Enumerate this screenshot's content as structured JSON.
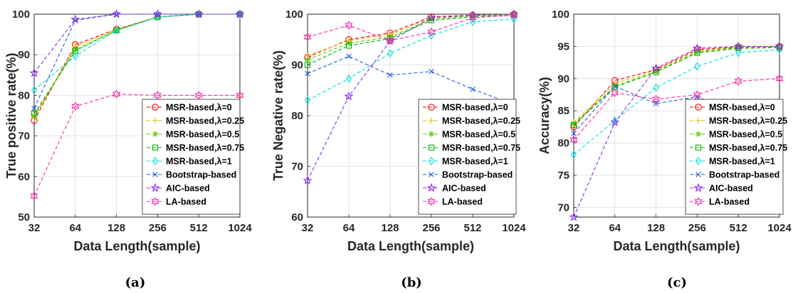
{
  "chart_data": [
    {
      "type": "line",
      "panel_label": "(a)",
      "xlabel": "Data Length(sample)",
      "ylabel": "True positive rate(%)",
      "categories": [
        "32",
        "64",
        "128",
        "256",
        "512",
        "1024"
      ],
      "yticks": [
        "50",
        "60",
        "70",
        "80",
        "90",
        "100"
      ],
      "ylim": [
        50,
        100
      ],
      "grid": true,
      "legend_position": "bottom-right",
      "series": [
        {
          "name": "MSR-based,λ=0",
          "values": [
            73.8,
            92.5,
            96.3,
            99.3,
            100,
            100
          ]
        },
        {
          "name": "MSR-based,λ=0.25",
          "values": [
            74.5,
            92.0,
            96.2,
            99.3,
            100,
            100
          ]
        },
        {
          "name": "MSR-based,λ=0.5",
          "values": [
            75.0,
            91.3,
            96.0,
            99.3,
            100,
            100
          ]
        },
        {
          "name": "MSR-based,λ=0.75",
          "values": [
            75.5,
            91.0,
            96.0,
            99.3,
            100,
            100
          ]
        },
        {
          "name": "MSR-based,λ=1",
          "values": [
            81.3,
            89.7,
            96.0,
            99.3,
            100,
            100
          ]
        },
        {
          "name": "Bootstrap-based",
          "values": [
            76.8,
            98.5,
            100,
            100,
            100,
            100
          ]
        },
        {
          "name": "AIC-based",
          "values": [
            85.5,
            98.7,
            100,
            100,
            100,
            100
          ]
        },
        {
          "name": "LA-based",
          "values": [
            55.2,
            77.3,
            80.3,
            80.0,
            80.0,
            80.0
          ]
        }
      ]
    },
    {
      "type": "line",
      "panel_label": "(b)",
      "xlabel": "Data Length(sample)",
      "ylabel": "True Negative rate(%)",
      "categories": [
        "32",
        "64",
        "128",
        "256",
        "512",
        "1024"
      ],
      "yticks": [
        "60",
        "70",
        "80",
        "90",
        "100"
      ],
      "ylim": [
        60,
        100
      ],
      "grid": true,
      "legend_position": "bottom-right",
      "series": [
        {
          "name": "MSR-based,λ=0",
          "values": [
            91.5,
            95.0,
            96.3,
            99.5,
            99.8,
            100
          ]
        },
        {
          "name": "MSR-based,λ=0.25",
          "values": [
            91.8,
            94.8,
            96.0,
            99.3,
            99.8,
            100
          ]
        },
        {
          "name": "MSR-based,λ=0.5",
          "values": [
            91.0,
            94.3,
            95.5,
            99.0,
            99.7,
            99.9
          ]
        },
        {
          "name": "MSR-based,λ=0.75",
          "values": [
            90.0,
            93.8,
            95.2,
            98.8,
            99.5,
            99.8
          ]
        },
        {
          "name": "MSR-based,λ=1",
          "values": [
            83.0,
            87.3,
            92.3,
            95.8,
            98.5,
            99.0
          ]
        },
        {
          "name": "Bootstrap-based",
          "values": [
            88.3,
            91.7,
            88.0,
            88.7,
            85.2,
            82.2
          ]
        },
        {
          "name": "AIC-based",
          "values": [
            67.2,
            83.8,
            94.7,
            99.3,
            99.8,
            100
          ]
        },
        {
          "name": "LA-based",
          "values": [
            95.5,
            97.8,
            94.8,
            96.5,
            99.3,
            99.8
          ]
        }
      ]
    },
    {
      "type": "line",
      "panel_label": "(c)",
      "xlabel": "Data Length(sample)",
      "ylabel": "Accuracy(%)",
      "categories": [
        "32",
        "64",
        "128",
        "256",
        "512",
        "1024"
      ],
      "yticks": [
        "70",
        "75",
        "80",
        "85",
        "90",
        "95",
        "100"
      ],
      "ylim": [
        68.5,
        100
      ],
      "grid": true,
      "legend_position": "bottom-right",
      "series": [
        {
          "name": "MSR-based,λ=0",
          "values": [
            82.5,
            89.7,
            91.4,
            94.5,
            94.9,
            95.0
          ]
        },
        {
          "name": "MSR-based,λ=0.25",
          "values": [
            83.2,
            89.2,
            91.3,
            94.3,
            94.8,
            94.9
          ]
        },
        {
          "name": "MSR-based,λ=0.5",
          "values": [
            83.0,
            88.8,
            91.1,
            94.1,
            94.8,
            94.9
          ]
        },
        {
          "name": "MSR-based,λ=0.75",
          "values": [
            82.8,
            88.7,
            91.0,
            94.0,
            94.7,
            94.8
          ]
        },
        {
          "name": "MSR-based,λ=1",
          "values": [
            78.2,
            83.5,
            88.6,
            91.9,
            94.0,
            94.5
          ]
        },
        {
          "name": "Bootstrap-based",
          "values": [
            81.5,
            88.8,
            86.1,
            87.2,
            84.6,
            82.4
          ]
        },
        {
          "name": "AIC-based",
          "values": [
            68.5,
            83.2,
            91.6,
            94.7,
            95.0,
            95.0
          ]
        },
        {
          "name": "LA-based",
          "values": [
            80.5,
            87.8,
            86.8,
            87.5,
            89.6,
            90.0
          ]
        }
      ]
    }
  ],
  "series_styles": [
    {
      "color": "#ff0000",
      "marker": "circle"
    },
    {
      "color": "#e6b800",
      "marker": "plus"
    },
    {
      "color": "#55d000",
      "marker": "asterisk"
    },
    {
      "color": "#00b000",
      "marker": "square"
    },
    {
      "color": "#00e0e0",
      "marker": "diamond"
    },
    {
      "color": "#2060dd",
      "marker": "x"
    },
    {
      "color": "#8a2be2",
      "marker": "pentagram"
    },
    {
      "color": "#ff2aa8",
      "marker": "hexagram"
    }
  ]
}
